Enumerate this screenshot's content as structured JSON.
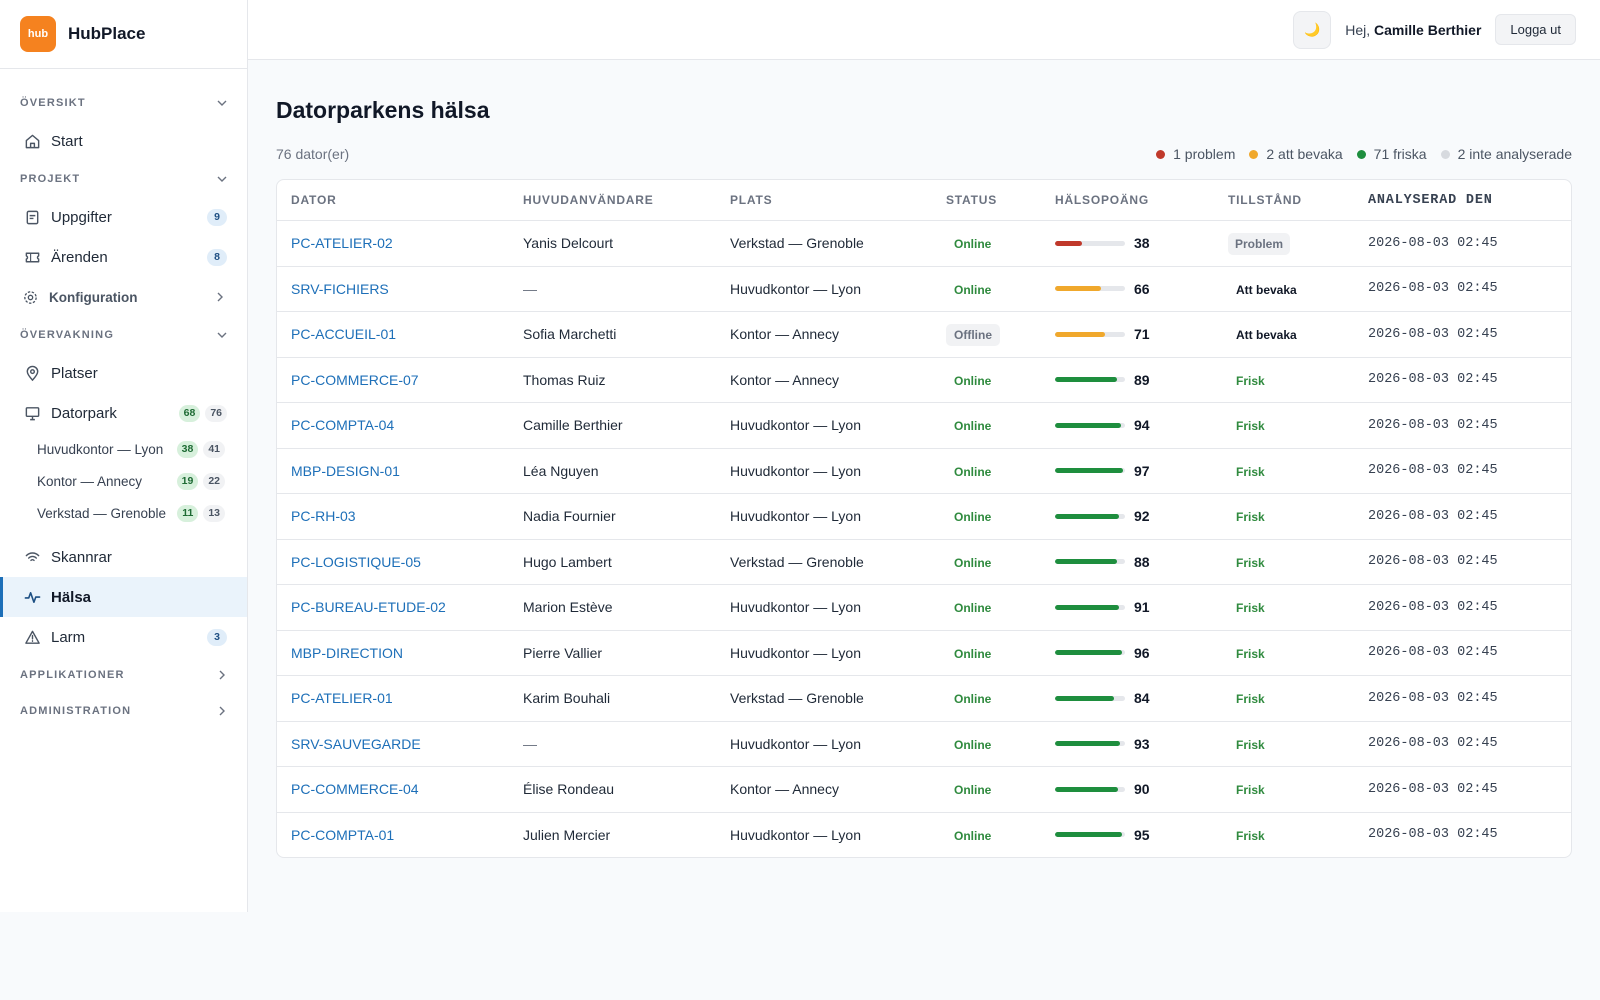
{
  "brand": {
    "logo_text": "hub",
    "name": "HubPlace"
  },
  "sidebar": {
    "oversikt": {
      "label": "ÖVERSIKT",
      "items": [
        {
          "label": "Start",
          "icon": "home-icon"
        }
      ]
    },
    "projekt": {
      "label": "PROJEKT",
      "items": [
        {
          "label": "Uppgifter",
          "badge": "9",
          "icon": "tasks-icon"
        },
        {
          "label": "Ärenden",
          "badge": "8",
          "icon": "ticket-icon"
        },
        {
          "label": "Konfiguration",
          "icon": "gear-icon"
        }
      ]
    },
    "overvakning": {
      "label": "ÖVERVAKNING",
      "items": [
        {
          "label": "Platser",
          "icon": "location-icon"
        },
        {
          "label": "Datorpark",
          "badge_green": "68",
          "badge_gray": "76",
          "icon": "monitor-icon"
        }
      ],
      "sub": [
        {
          "label": "Huvudkontor — Lyon",
          "green": "38",
          "gray": "41"
        },
        {
          "label": "Kontor — Annecy",
          "green": "19",
          "gray": "22"
        },
        {
          "label": "Verkstad — Grenoble",
          "green": "11",
          "gray": "13"
        }
      ],
      "items2": [
        {
          "label": "Skannrar",
          "icon": "wifi-icon"
        },
        {
          "label": "Hälsa",
          "icon": "pulse-icon"
        },
        {
          "label": "Larm",
          "badge": "3",
          "icon": "warning-icon"
        }
      ]
    },
    "applikationer": {
      "label": "APPLIKATIONER"
    },
    "administration": {
      "label": "ADMINISTRATION"
    }
  },
  "topbar": {
    "theme_glyph": "🌙",
    "greeting": "Hej,",
    "user": "Camille Berthier",
    "logout": "Logga ut"
  },
  "main": {
    "title": "Datorparkens hälsa",
    "count": "76 dator(er)",
    "legend": [
      {
        "label": "1 problem",
        "color": "#c0392b"
      },
      {
        "label": "2 att bevaka",
        "color": "#f0a82c"
      },
      {
        "label": "71 friska",
        "color": "#1e8e3e"
      },
      {
        "label": "2 inte analyserade",
        "color": "#d7dadf"
      }
    ],
    "columns": [
      "DATOR",
      "HUVUDANVÄNDARE",
      "PLATS",
      "STATUS",
      "HÄLSOPOÄNG",
      "TILLSTÅND",
      "ANALYSERAD DEN"
    ],
    "rows": [
      {
        "dator": "PC-ATELIER-02",
        "user": "Yanis Delcourt",
        "plats": "Verkstad — Grenoble",
        "status": "Online",
        "score": "38",
        "state": "Problem",
        "date": "2026-08-03 02:45"
      },
      {
        "dator": "SRV-FICHIERS",
        "user": "—",
        "plats": "Huvudkontor — Lyon",
        "status": "Online",
        "score": "66",
        "state": "Att bevaka",
        "date": "2026-08-03 02:45"
      },
      {
        "dator": "PC-ACCUEIL-01",
        "user": "Sofia Marchetti",
        "plats": "Kontor — Annecy",
        "status": "Offline",
        "score": "71",
        "state": "Att bevaka",
        "date": "2026-08-03 02:45"
      },
      {
        "dator": "PC-COMMERCE-07",
        "user": "Thomas Ruiz",
        "plats": "Kontor — Annecy",
        "status": "Online",
        "score": "89",
        "state": "Frisk",
        "date": "2026-08-03 02:45"
      },
      {
        "dator": "PC-COMPTA-04",
        "user": "Camille Berthier",
        "plats": "Huvudkontor — Lyon",
        "status": "Online",
        "score": "94",
        "state": "Frisk",
        "date": "2026-08-03 02:45"
      },
      {
        "dator": "MBP-DESIGN-01",
        "user": "Léa Nguyen",
        "plats": "Huvudkontor — Lyon",
        "status": "Online",
        "score": "97",
        "state": "Frisk",
        "date": "2026-08-03 02:45"
      },
      {
        "dator": "PC-RH-03",
        "user": "Nadia Fournier",
        "plats": "Huvudkontor — Lyon",
        "status": "Online",
        "score": "92",
        "state": "Frisk",
        "date": "2026-08-03 02:45"
      },
      {
        "dator": "PC-LOGISTIQUE-05",
        "user": "Hugo Lambert",
        "plats": "Verkstad — Grenoble",
        "status": "Online",
        "score": "88",
        "state": "Frisk",
        "date": "2026-08-03 02:45"
      },
      {
        "dator": "PC-BUREAU-ETUDE-02",
        "user": "Marion Estève",
        "plats": "Huvudkontor — Lyon",
        "status": "Online",
        "score": "91",
        "state": "Frisk",
        "date": "2026-08-03 02:45"
      },
      {
        "dator": "MBP-DIRECTION",
        "user": "Pierre Vallier",
        "plats": "Huvudkontor — Lyon",
        "status": "Online",
        "score": "96",
        "state": "Frisk",
        "date": "2026-08-03 02:45"
      },
      {
        "dator": "PC-ATELIER-01",
        "user": "Karim Bouhali",
        "plats": "Verkstad — Grenoble",
        "status": "Online",
        "score": "84",
        "state": "Frisk",
        "date": "2026-08-03 02:45"
      },
      {
        "dator": "SRV-SAUVEGARDE",
        "user": "—",
        "plats": "Huvudkontor — Lyon",
        "status": "Online",
        "score": "93",
        "state": "Frisk",
        "date": "2026-08-03 02:45"
      },
      {
        "dator": "PC-COMMERCE-04",
        "user": "Élise Rondeau",
        "plats": "Kontor — Annecy",
        "status": "Online",
        "score": "90",
        "state": "Frisk",
        "date": "2026-08-03 02:45"
      },
      {
        "dator": "PC-COMPTA-01",
        "user": "Julien Mercier",
        "plats": "Huvudkontor — Lyon",
        "status": "Online",
        "score": "95",
        "state": "Frisk",
        "date": "2026-08-03 02:45"
      }
    ]
  },
  "colors": {
    "accent": "#1d6fb8",
    "brand": "#f5821f",
    "problem": "#c0392b",
    "watch": "#f0a82c",
    "healthy": "#1e8e3e"
  }
}
